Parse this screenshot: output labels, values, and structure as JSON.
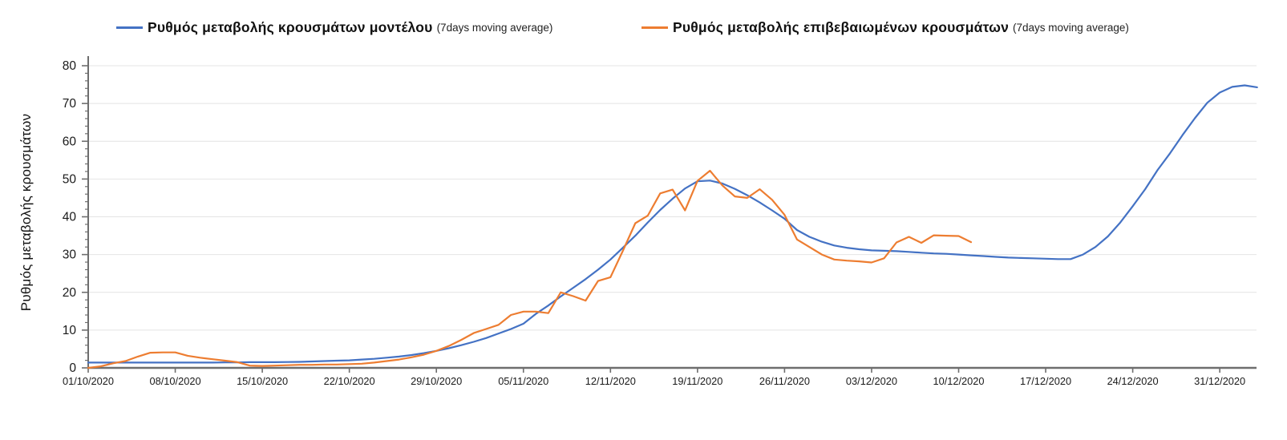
{
  "legend": {
    "series_model": {
      "label": "Ρυθμός μεταβολής κρουσμάτων μοντέλου",
      "sub": "(7days moving average)",
      "color": "#4472C4"
    },
    "series_confirmed": {
      "label": "Ρυθμός μεταβολής επιβεβαιωμένων κρουσμάτων",
      "sub": "(7days moving average)",
      "color": "#ED7D31"
    }
  },
  "y_axis": {
    "title": "Ρυθμός μεταβολής κρουσμάτων",
    "tick_labels": [
      "0",
      "10",
      "20",
      "30",
      "40",
      "50",
      "60",
      "70",
      "80"
    ]
  },
  "x_axis": {
    "tick_labels": [
      "01/10/2020",
      "08/10/2020",
      "15/10/2020",
      "22/10/2020",
      "29/10/2020",
      "05/11/2020",
      "12/11/2020",
      "19/11/2020",
      "26/11/2020",
      "03/12/2020",
      "10/12/2020",
      "17/12/2020",
      "24/12/2020",
      "31/12/2020"
    ]
  },
  "colors": {
    "model_line": "#4472C4",
    "confirmed_line": "#ED7D31",
    "gridline": "#e4e4e4",
    "axis": "#6e6e6e",
    "tick_text": "#1a1a1a"
  },
  "chart_data": {
    "type": "line",
    "title": "",
    "xlabel": "",
    "ylabel": "Ρυθμός μεταβολής κρουσμάτων",
    "ylim": [
      0,
      80
    ],
    "x_unit": "days since 01/10/2020",
    "x_tick_dates": [
      "01/10/2020",
      "08/10/2020",
      "15/10/2020",
      "22/10/2020",
      "29/10/2020",
      "05/11/2020",
      "12/11/2020",
      "19/11/2020",
      "26/11/2020",
      "03/12/2020",
      "10/12/2020",
      "17/12/2020",
      "24/12/2020",
      "31/12/2020"
    ],
    "grid": "horizontal-only",
    "legend_position": "top",
    "series": [
      {
        "name": "Ρυθμός μεταβολής κρουσμάτων μοντέλου (7days moving average)",
        "color": "#4472C4",
        "start_day": 0,
        "values": [
          1.4,
          1.4,
          1.4,
          1.4,
          1.4,
          1.4,
          1.4,
          1.4,
          1.4,
          1.4,
          1.4,
          1.45,
          1.45,
          1.5,
          1.5,
          1.5,
          1.55,
          1.6,
          1.7,
          1.8,
          1.9,
          2.0,
          2.2,
          2.4,
          2.7,
          3.0,
          3.4,
          3.9,
          4.5,
          5.2,
          6.0,
          6.9,
          7.9,
          9.1,
          10.3,
          11.7,
          14.3,
          16.5,
          18.9,
          21.2,
          23.5,
          26.0,
          28.7,
          31.8,
          35.0,
          38.5,
          41.8,
          44.8,
          47.5,
          49.4,
          49.6,
          48.8,
          47.4,
          45.7,
          43.8,
          41.7,
          39.5,
          36.5,
          34.7,
          33.4,
          32.4,
          31.8,
          31.4,
          31.1,
          31.0,
          30.9,
          30.7,
          30.5,
          30.3,
          30.2,
          30.0,
          29.8,
          29.6,
          29.4,
          29.2,
          29.1,
          29.0,
          28.9,
          28.8,
          28.8,
          30.0,
          32.0,
          34.8,
          38.5,
          42.8,
          47.3,
          52.4,
          56.8,
          61.6,
          66.1,
          70.2,
          72.9,
          74.4,
          74.8,
          74.3
        ]
      },
      {
        "name": "Ρυθμός μεταβολής επιβεβαιωμένων κρουσμάτων (7days moving average)",
        "color": "#ED7D31",
        "start_day": 0,
        "values": [
          0,
          0.4,
          1.2,
          1.8,
          3.0,
          4.0,
          4.1,
          4.1,
          3.2,
          2.7,
          2.3,
          1.9,
          1.5,
          0.6,
          0.5,
          0.6,
          0.7,
          0.8,
          0.8,
          0.9,
          0.9,
          1.0,
          1.1,
          1.4,
          1.8,
          2.2,
          2.8,
          3.5,
          4.5,
          5.8,
          7.4,
          9.2,
          10.3,
          11.4,
          14.0,
          14.9,
          14.9,
          14.5,
          20.0,
          19.0,
          17.8,
          23.0,
          24.0,
          31.0,
          38.3,
          40.3,
          46.2,
          47.2,
          41.7,
          49.5,
          52.2,
          48.3,
          45.4,
          45.0,
          47.3,
          44.5,
          40.5,
          34.0,
          32.0,
          30.0,
          28.7,
          28.4,
          28.2,
          27.9,
          29.0,
          33.2,
          34.7,
          33.1,
          35.1,
          35.0,
          34.9,
          33.3
        ]
      }
    ]
  }
}
